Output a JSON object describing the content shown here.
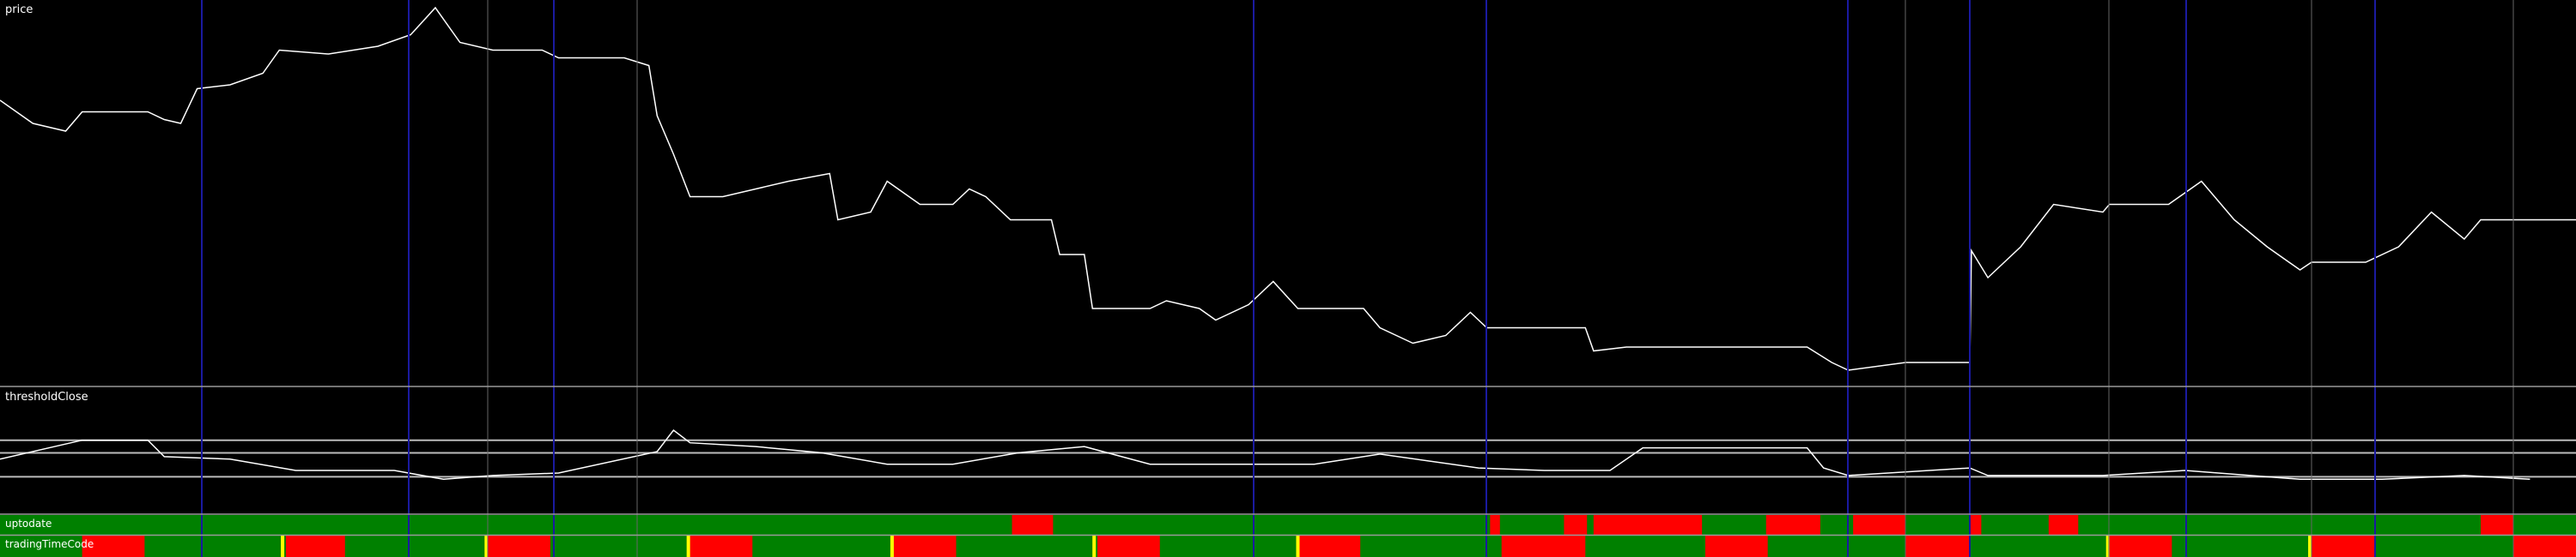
{
  "chart_data": [
    {
      "type": "line",
      "title": "price",
      "color": "#ffffff",
      "xlim": [
        0,
        1568
      ],
      "ylim": [
        0,
        100
      ],
      "x": [
        0,
        20,
        40,
        50,
        90,
        100,
        110,
        120,
        140,
        160,
        170,
        200,
        230,
        250,
        265,
        280,
        300,
        330,
        340,
        360,
        380,
        395,
        400,
        410,
        420,
        440,
        460,
        480,
        505,
        510,
        530,
        540,
        560,
        580,
        590,
        600,
        615,
        640,
        645,
        660,
        665,
        700,
        710,
        730,
        740,
        760,
        775,
        790,
        830,
        840,
        860,
        880,
        895,
        905,
        940,
        965,
        970,
        990,
        1100,
        1115,
        1125,
        1160,
        1199,
        1200,
        1210,
        1230,
        1250,
        1280,
        1284,
        1320,
        1340,
        1360,
        1380,
        1400,
        1407,
        1440,
        1460,
        1480,
        1500,
        1510,
        1530,
        1568
      ],
      "values": [
        74,
        68,
        66,
        71,
        71,
        69,
        68,
        77,
        78,
        81,
        87,
        86,
        88,
        91,
        98,
        89,
        87,
        87,
        85,
        85,
        85,
        83,
        70,
        60,
        49,
        49,
        51,
        53,
        55,
        43,
        45,
        53,
        47,
        47,
        51,
        49,
        43,
        43,
        34,
        34,
        20,
        20,
        22,
        20,
        17,
        21,
        27,
        20,
        20,
        15,
        11,
        13,
        19,
        15,
        15,
        15,
        9,
        10,
        10,
        6,
        4,
        6,
        6,
        35,
        28,
        36,
        47,
        45,
        47,
        47,
        53,
        43,
        36,
        30,
        32,
        32,
        36,
        45,
        38,
        43,
        43,
        43
      ]
    },
    {
      "type": "line",
      "title": "thresholdClose",
      "color": "#ffffff",
      "xlim": [
        0,
        1568
      ],
      "ylim": [
        0,
        100
      ],
      "levels": [
        58,
        48,
        29
      ],
      "x": [
        0,
        50,
        90,
        100,
        140,
        180,
        240,
        270,
        300,
        340,
        400,
        410,
        420,
        460,
        500,
        540,
        580,
        620,
        660,
        700,
        760,
        800,
        840,
        900,
        940,
        980,
        1000,
        1100,
        1110,
        1125,
        1199,
        1210,
        1280,
        1330,
        1400,
        1450,
        1500,
        1540
      ],
      "values": [
        43,
        58,
        58,
        45,
        43,
        34,
        34,
        27,
        30,
        32,
        49,
        66,
        56,
        53,
        48,
        39,
        39,
        48,
        53,
        39,
        39,
        39,
        47,
        36,
        34,
        34,
        52,
        52,
        36,
        30,
        36,
        30,
        30,
        34,
        27,
        27,
        30,
        27
      ]
    },
    {
      "type": "status",
      "title": "uptodate",
      "xlim": [
        0,
        1568
      ],
      "color": "#008000",
      "alert_color": "#ff0000",
      "alerts": [
        [
          616,
          641
        ],
        [
          907,
          913
        ],
        [
          952,
          966
        ],
        [
          970,
          1036
        ],
        [
          1075,
          1108
        ],
        [
          1128,
          1160
        ],
        [
          1199,
          1206
        ],
        [
          1247,
          1265
        ],
        [
          1510,
          1530
        ]
      ]
    },
    {
      "type": "status",
      "title": "tradingTimeCode",
      "xlim": [
        0,
        1568
      ],
      "color": "#008000",
      "alert_color": "#ff0000",
      "marker_color": "#ffff00",
      "alerts": [
        [
          50,
          88
        ],
        [
          174,
          210
        ],
        [
          297,
          335
        ],
        [
          420,
          458
        ],
        [
          544,
          582
        ],
        [
          668,
          706
        ],
        [
          791,
          828
        ],
        [
          914,
          965
        ],
        [
          1038,
          1076
        ],
        [
          1160,
          1199
        ],
        [
          1283,
          1322
        ],
        [
          1407,
          1446
        ],
        [
          1530,
          1568
        ]
      ],
      "markers": [
        172,
        296,
        419,
        543,
        666,
        790,
        1283,
        1406
      ]
    }
  ]
}
